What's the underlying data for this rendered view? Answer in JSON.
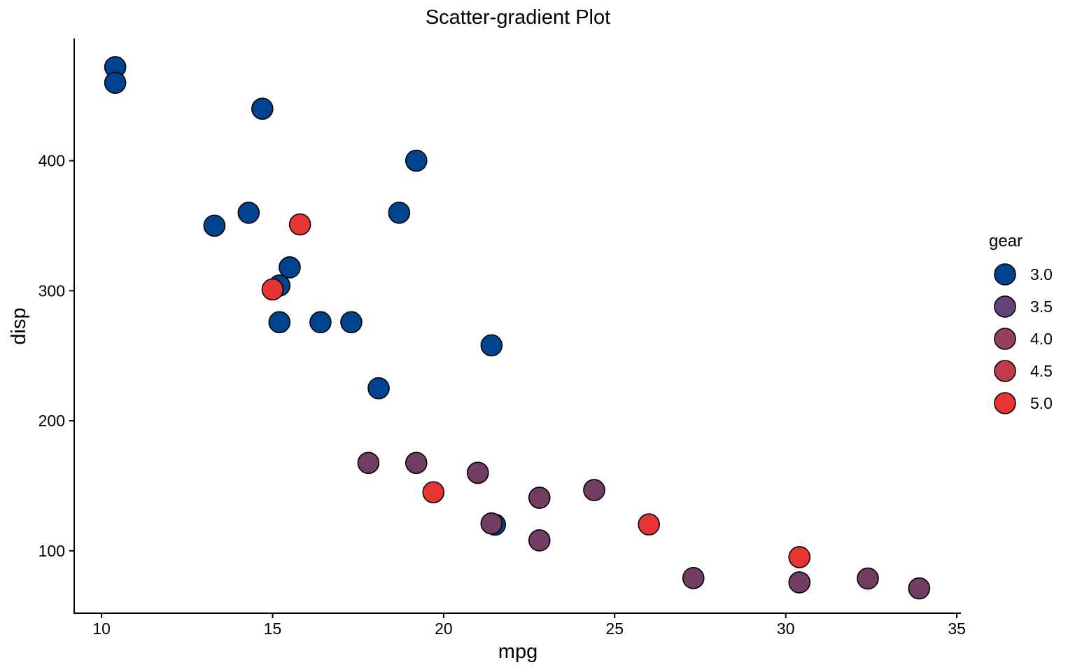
{
  "chart_data": {
    "type": "scatter",
    "title": "Scatter-gradient Plot",
    "xlabel": "mpg",
    "ylabel": "disp",
    "xlim": [
      9.2,
      35.1
    ],
    "ylim": [
      52,
      494
    ],
    "xticks": [
      10,
      15,
      20,
      25,
      30,
      35
    ],
    "yticks": [
      100,
      200,
      300,
      400
    ],
    "grid": false,
    "color_by": "gear",
    "color_range": [
      3,
      5
    ],
    "colors": {
      "low": "#00438f",
      "high": "#e63434"
    },
    "legend": {
      "title": "gear",
      "position": "right",
      "entries": [
        {
          "label": "3.0",
          "color": "#00438f"
        },
        {
          "label": "3.5",
          "color": "#634379"
        },
        {
          "label": "4.0",
          "color": "#944060"
        },
        {
          "label": "4.5",
          "color": "#bf3b4b"
        },
        {
          "label": "5.0",
          "color": "#e63434"
        }
      ]
    },
    "points": [
      {
        "x": 21.0,
        "y": 160,
        "gear": 4
      },
      {
        "x": 21.0,
        "y": 160,
        "gear": 4
      },
      {
        "x": 22.8,
        "y": 108,
        "gear": 4
      },
      {
        "x": 21.4,
        "y": 258,
        "gear": 3
      },
      {
        "x": 18.7,
        "y": 360,
        "gear": 3
      },
      {
        "x": 18.1,
        "y": 225,
        "gear": 3
      },
      {
        "x": 14.3,
        "y": 360,
        "gear": 3
      },
      {
        "x": 24.4,
        "y": 146.7,
        "gear": 4
      },
      {
        "x": 22.8,
        "y": 140.8,
        "gear": 4
      },
      {
        "x": 19.2,
        "y": 167.6,
        "gear": 4
      },
      {
        "x": 17.8,
        "y": 167.6,
        "gear": 4
      },
      {
        "x": 16.4,
        "y": 275.8,
        "gear": 3
      },
      {
        "x": 17.3,
        "y": 275.8,
        "gear": 3
      },
      {
        "x": 15.2,
        "y": 275.8,
        "gear": 3
      },
      {
        "x": 10.4,
        "y": 472,
        "gear": 3
      },
      {
        "x": 10.4,
        "y": 460,
        "gear": 3
      },
      {
        "x": 14.7,
        "y": 440,
        "gear": 3
      },
      {
        "x": 32.4,
        "y": 78.7,
        "gear": 4
      },
      {
        "x": 30.4,
        "y": 75.7,
        "gear": 4
      },
      {
        "x": 33.9,
        "y": 71.1,
        "gear": 4
      },
      {
        "x": 21.5,
        "y": 120.1,
        "gear": 3
      },
      {
        "x": 15.5,
        "y": 318,
        "gear": 3
      },
      {
        "x": 15.2,
        "y": 304,
        "gear": 3
      },
      {
        "x": 13.3,
        "y": 350,
        "gear": 3
      },
      {
        "x": 19.2,
        "y": 400,
        "gear": 3
      },
      {
        "x": 27.3,
        "y": 79,
        "gear": 4
      },
      {
        "x": 26.0,
        "y": 120.3,
        "gear": 5
      },
      {
        "x": 30.4,
        "y": 95.1,
        "gear": 5
      },
      {
        "x": 15.8,
        "y": 351,
        "gear": 5
      },
      {
        "x": 19.7,
        "y": 145,
        "gear": 5
      },
      {
        "x": 15.0,
        "y": 301,
        "gear": 5
      },
      {
        "x": 21.4,
        "y": 121,
        "gear": 4
      }
    ]
  }
}
